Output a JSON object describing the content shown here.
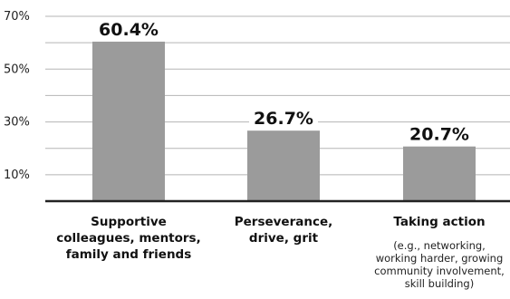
{
  "chart_data": {
    "type": "bar",
    "categories": [
      "Supportive colleagues, mentors, family and friends",
      "Perseverance, drive, grit",
      "Taking action"
    ],
    "category_notes": [
      "",
      "",
      "(e.g., networking, working harder, growing community involvement, skill building)"
    ],
    "values": [
      60.4,
      26.7,
      20.7
    ],
    "data_labels": [
      "60.4%",
      "26.7%",
      "20.7%"
    ],
    "title": "",
    "xlabel": "",
    "ylabel": "",
    "ylim": [
      0,
      70
    ],
    "yticks": [
      10,
      30,
      50,
      70
    ],
    "ytick_labels": [
      "10%",
      "30%",
      "50%",
      "70%"
    ],
    "grid": true,
    "colors": {
      "bar": "#9b9b9b",
      "grid": "#b5b5b5",
      "baseline": "#222222",
      "text": "#111111"
    }
  }
}
